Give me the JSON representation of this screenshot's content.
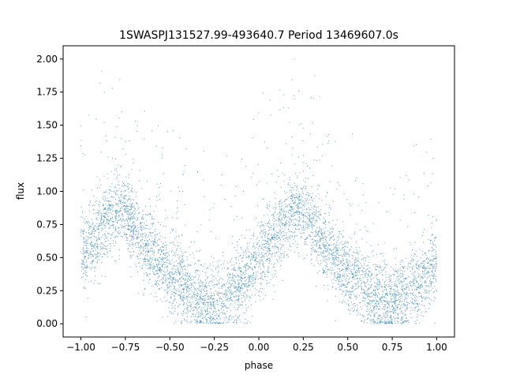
{
  "chart_data": {
    "type": "scatter",
    "title": "1SWASPJ131527.99-493640.7 Period 13469607.0s",
    "xlabel": "phase",
    "ylabel": "flux",
    "xlim": [
      -1.1,
      1.1
    ],
    "ylim": [
      -0.1,
      2.1
    ],
    "xticks": [
      -1.0,
      -0.75,
      -0.5,
      -0.25,
      0.0,
      0.25,
      0.5,
      0.75,
      1.0
    ],
    "xtick_labels": [
      "−1.00",
      "−0.75",
      "−0.50",
      "−0.25",
      "0.00",
      "0.25",
      "0.50",
      "0.75",
      "1.00"
    ],
    "yticks": [
      0.0,
      0.25,
      0.5,
      0.75,
      1.0,
      1.25,
      1.5,
      1.75,
      2.0
    ],
    "ytick_labels": [
      "0.00",
      "0.25",
      "0.50",
      "0.75",
      "1.00",
      "1.25",
      "1.50",
      "1.75",
      "2.00"
    ],
    "grid": false,
    "marker_color": "#1f77b4",
    "phase_range": [
      -1.0,
      1.0
    ],
    "flux_profile": {
      "phase": [
        0.0,
        0.05,
        0.1,
        0.15,
        0.2,
        0.25,
        0.3,
        0.35,
        0.4,
        0.45,
        0.5,
        0.55,
        0.6,
        0.65,
        0.7,
        0.75,
        0.8,
        0.85,
        0.9,
        0.95,
        1.0
      ],
      "flux": [
        0.5,
        0.6,
        0.68,
        0.78,
        0.85,
        0.82,
        0.75,
        0.62,
        0.55,
        0.45,
        0.38,
        0.32,
        0.25,
        0.2,
        0.17,
        0.16,
        0.2,
        0.25,
        0.3,
        0.38,
        0.5
      ]
    }
  }
}
